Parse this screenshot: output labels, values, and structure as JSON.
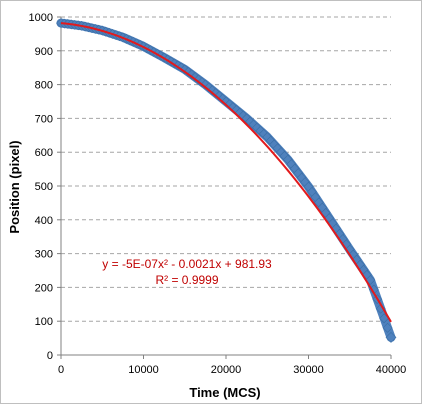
{
  "chart_data": {
    "type": "scatter",
    "title": "",
    "xlabel": "Time (MCS)",
    "ylabel": "Position (pixel)",
    "xlim": [
      0,
      40000
    ],
    "ylim": [
      0,
      1000
    ],
    "x_ticks": [
      0,
      10000,
      20000,
      30000,
      40000
    ],
    "y_ticks": [
      0,
      100,
      200,
      300,
      400,
      500,
      600,
      700,
      800,
      900,
      1000
    ],
    "grid": {
      "horizontal": true,
      "vertical": false,
      "style": "dashed"
    },
    "legend": "none",
    "series": [
      {
        "kind": "scatter",
        "color": "#4f81bd",
        "x": [
          0,
          2500,
          5000,
          7500,
          10000,
          12500,
          15000,
          17500,
          20000,
          22500,
          25000,
          27500,
          30000,
          32500,
          35000,
          37500,
          40000
        ],
        "y": [
          982,
          974,
          960,
          940,
          913,
          880,
          845,
          800,
          750,
          700,
          645,
          578,
          498,
          405,
          312,
          222,
          52
        ]
      },
      {
        "kind": "trendline",
        "color": "#e31a1c",
        "equation": {
          "a": -5e-07,
          "b": -0.0021,
          "c": 981.93
        },
        "x_range": [
          0,
          40000
        ]
      }
    ],
    "annotations": {
      "equation_text": "y = -5E-07x² - 0.0021x + 981.93",
      "r2_text": "R² = 0.9999"
    }
  }
}
